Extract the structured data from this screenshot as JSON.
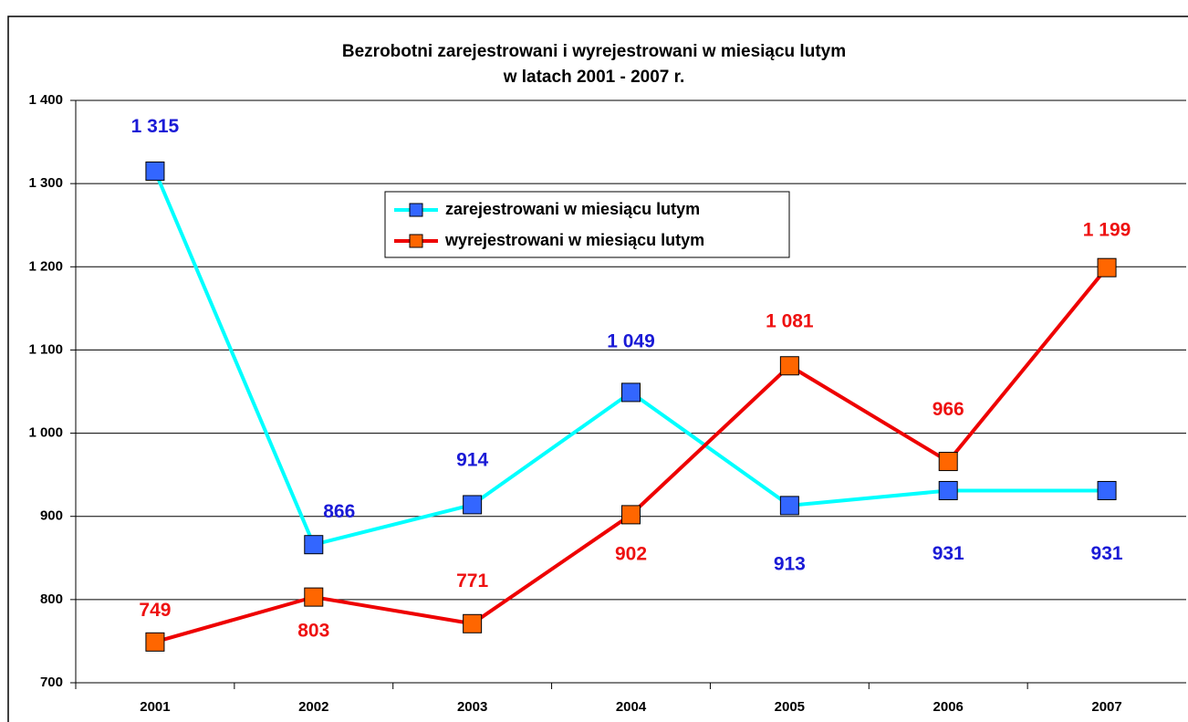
{
  "chart_data": {
    "type": "line",
    "title": "Bezrobotni zarejestrowani i wyrejestrowani w miesiącu lutym",
    "subtitle": "w latach 2001 - 2007 r.",
    "categories": [
      "2001",
      "2002",
      "2003",
      "2004",
      "2005",
      "2006",
      "2007"
    ],
    "series": [
      {
        "name": "zarejestrowani w miesiącu lutym",
        "color": "#00ffff",
        "marker_color": "#3366ff",
        "label_color": "#1a1ad6",
        "values": [
          1315,
          866,
          914,
          1049,
          913,
          931,
          931
        ],
        "value_labels": [
          "1 315",
          "866",
          "914",
          "1 049",
          "913",
          "931",
          "931"
        ]
      },
      {
        "name": "wyrejestrowani w miesiącu lutym",
        "color": "#ee0000",
        "marker_color": "#ff6600",
        "label_color": "#ee1111",
        "values": [
          749,
          803,
          771,
          902,
          1081,
          966,
          1199
        ],
        "value_labels": [
          "749",
          "803",
          "771",
          "902",
          "1 081",
          "966",
          "1 199"
        ]
      }
    ],
    "ylim": [
      700,
      1400
    ],
    "yticks": [
      {
        "value": 700,
        "label": "700"
      },
      {
        "value": 800,
        "label": "800"
      },
      {
        "value": 900,
        "label": "900"
      },
      {
        "value": 1000,
        "label": "1 000"
      },
      {
        "value": 1100,
        "label": "1 100"
      },
      {
        "value": 1200,
        "label": "1 200"
      },
      {
        "value": 1300,
        "label": "1 300"
      },
      {
        "value": 1400,
        "label": "1 400"
      }
    ],
    "grid": true,
    "legend": "upper center"
  }
}
